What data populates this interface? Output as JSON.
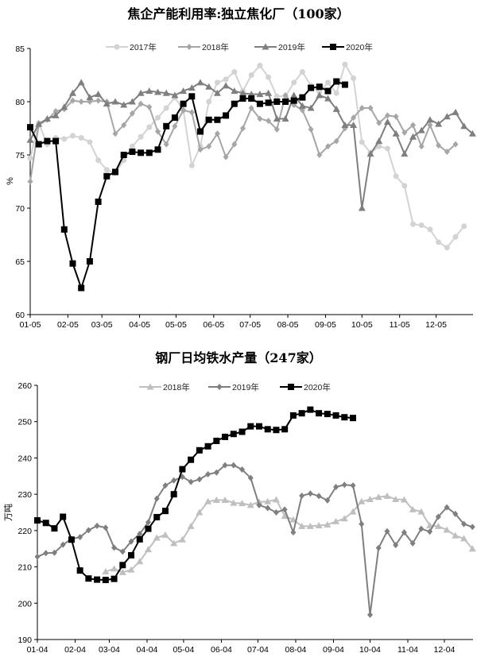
{
  "chart_data": [
    {
      "type": "line",
      "title": "焦企产能利用率:独立焦化厂（100家）",
      "ylabel": "%",
      "xlabel": "",
      "ylim": [
        60,
        85
      ],
      "yticks": [
        60,
        65,
        70,
        75,
        80,
        85
      ],
      "x_ticks": [
        "01-05",
        "02-05",
        "03-05",
        "04-05",
        "05-05",
        "06-05",
        "07-05",
        "08-05",
        "09-05",
        "10-05",
        "11-05",
        "12-05"
      ],
      "x_frequency": "weekly",
      "legend": "top",
      "grid": false,
      "series": [
        {
          "name": "2017年",
          "color": "#d3d3d3",
          "marker": "circle",
          "values": [
            74.7,
            78.0,
            76.0,
            76.6,
            76.5,
            76.8,
            76.6,
            76.2,
            74.5,
            73.6,
            73.3,
            74.5,
            75.8,
            76.7,
            77.6,
            78.5,
            79.4,
            80.4,
            79.2,
            74.0,
            75.8,
            80.0,
            81.8,
            82.1,
            82.8,
            81.0,
            82.5,
            83.4,
            82.3,
            80.5,
            80.5,
            81.8,
            82.8,
            81.5,
            80.9,
            81.8,
            80.8,
            83.5,
            82.2,
            76.2,
            75.2,
            75.8,
            75.6,
            73.0,
            72.1,
            68.5,
            68.4,
            68.0,
            66.8,
            66.3,
            67.3,
            68.3
          ]
        },
        {
          "name": "2018年",
          "color": "#a6a6a6",
          "marker": "diamond",
          "values": [
            72.5,
            77.8,
            78.3,
            79.1,
            79.3,
            80.1,
            80.0,
            80.0,
            80.1,
            80.0,
            77.0,
            77.8,
            78.9,
            79.8,
            79.5,
            77.2,
            76.0,
            77.7,
            79.2,
            79.0,
            75.5,
            75.8,
            77.0,
            74.8,
            76.0,
            77.5,
            79.4,
            78.4,
            78.2,
            77.4,
            80.6,
            79.7,
            79.2,
            77.4,
            75.0,
            75.8,
            76.3,
            77.5,
            78.5,
            79.4,
            79.4,
            78.0,
            78.7,
            78.6,
            77.1,
            77.8,
            75.8,
            77.8,
            75.9,
            75.3,
            76.0
          ]
        },
        {
          "name": "2019年",
          "color": "#7f7f7f",
          "marker": "triangle",
          "values": [
            76.4,
            77.9,
            78.4,
            78.7,
            79.5,
            80.8,
            81.8,
            80.4,
            80.7,
            79.8,
            80.0,
            79.7,
            80.0,
            80.8,
            81.0,
            80.9,
            80.8,
            80.6,
            81.0,
            81.3,
            81.8,
            81.4,
            80.8,
            81.5,
            81.0,
            80.8,
            80.7,
            80.7,
            80.8,
            78.4,
            78.4,
            80.6,
            79.6,
            79.4,
            80.6,
            80.3,
            79.3,
            77.8,
            77.8,
            70.0,
            75.1,
            76.3,
            78.1,
            77.0,
            75.1,
            76.7,
            77.3,
            78.3,
            77.9,
            78.6,
            79.0,
            77.7,
            77.0
          ]
        },
        {
          "name": "2020年",
          "color": "#000000",
          "marker": "square",
          "values": [
            77.6,
            76.0,
            76.3,
            76.3,
            68.0,
            64.8,
            62.5,
            65.0,
            70.6,
            73.0,
            73.4,
            75.0,
            75.3,
            75.2,
            75.2,
            75.5,
            77.7,
            78.5,
            79.8,
            80.5,
            77.2,
            78.3,
            78.3,
            78.7,
            79.8,
            80.3,
            80.3,
            79.8,
            79.9,
            80.0,
            80.0,
            80.1,
            80.4,
            81.3,
            81.4,
            81.0,
            81.9,
            81.6
          ]
        }
      ]
    },
    {
      "type": "line",
      "title": "钢厂日均铁水产量（247家）",
      "ylabel": "万吨",
      "xlabel": "",
      "ylim": [
        190,
        260
      ],
      "yticks": [
        190,
        200,
        210,
        220,
        230,
        240,
        250,
        260
      ],
      "x_ticks": [
        "01-04",
        "02-04",
        "03-04",
        "04-04",
        "05-04",
        "06-04",
        "07-04",
        "08-04",
        "09-04",
        "10-04",
        "11-04",
        "12-04"
      ],
      "x_frequency": "weekly",
      "legend": "top",
      "grid": false,
      "series": [
        {
          "name": "2018年",
          "color": "#bfbfbf",
          "marker": "triangle",
          "start_week": 8,
          "values": [
            208.7,
            209.5,
            208.5,
            209.2,
            211.5,
            214.8,
            218.0,
            218.8,
            216.5,
            217.5,
            221.2,
            225.0,
            228.0,
            228.4,
            228.4,
            227.6,
            227.5,
            227.0,
            227.9,
            228.0,
            228.5,
            224.0,
            223.0,
            221.2,
            221.2,
            221.4,
            221.6,
            222.5,
            223.3,
            225.2,
            228.0,
            228.6,
            229.2,
            229.5,
            228.6,
            228.5,
            225.8,
            225.2,
            221.4,
            221.2,
            220.2,
            218.6,
            217.8,
            215.0
          ]
        },
        {
          "name": "2019年",
          "color": "#7f7f7f",
          "marker": "diamond",
          "start_week": 0,
          "values": [
            212.8,
            213.8,
            213.9,
            216.1,
            217.7,
            218.2,
            220.1,
            221.3,
            220.8,
            215.3,
            214.2,
            217.0,
            219.1,
            222.3,
            228.8,
            232.4,
            233.8,
            234.8,
            233.4,
            234.1,
            235.5,
            236.0,
            238.0,
            238.0,
            236.8,
            234.5,
            227.0,
            226.2,
            225.0,
            225.8,
            219.5,
            229.6,
            230.2,
            229.5,
            228.3,
            232.0,
            232.6,
            232.4,
            221.8,
            196.8,
            215.2,
            219.8,
            216.0,
            219.5,
            216.5,
            220.5,
            219.7,
            223.8,
            226.4,
            224.6,
            221.8,
            221.0
          ]
        },
        {
          "name": "2020年",
          "color": "#000000",
          "marker": "square",
          "start_week": 0,
          "values": [
            222.8,
            222.1,
            220.6,
            223.8,
            217.5,
            209.0,
            206.8,
            206.5,
            206.4,
            206.7,
            210.5,
            213.2,
            217.6,
            220.5,
            223.7,
            225.4,
            230.0,
            236.9,
            239.5,
            242.1,
            243.2,
            244.7,
            245.8,
            246.6,
            247.2,
            248.7,
            248.7,
            247.9,
            247.7,
            247.9,
            251.7,
            252.3,
            253.3,
            252.3,
            252.1,
            251.7,
            251.2,
            251.0
          ]
        }
      ]
    }
  ]
}
